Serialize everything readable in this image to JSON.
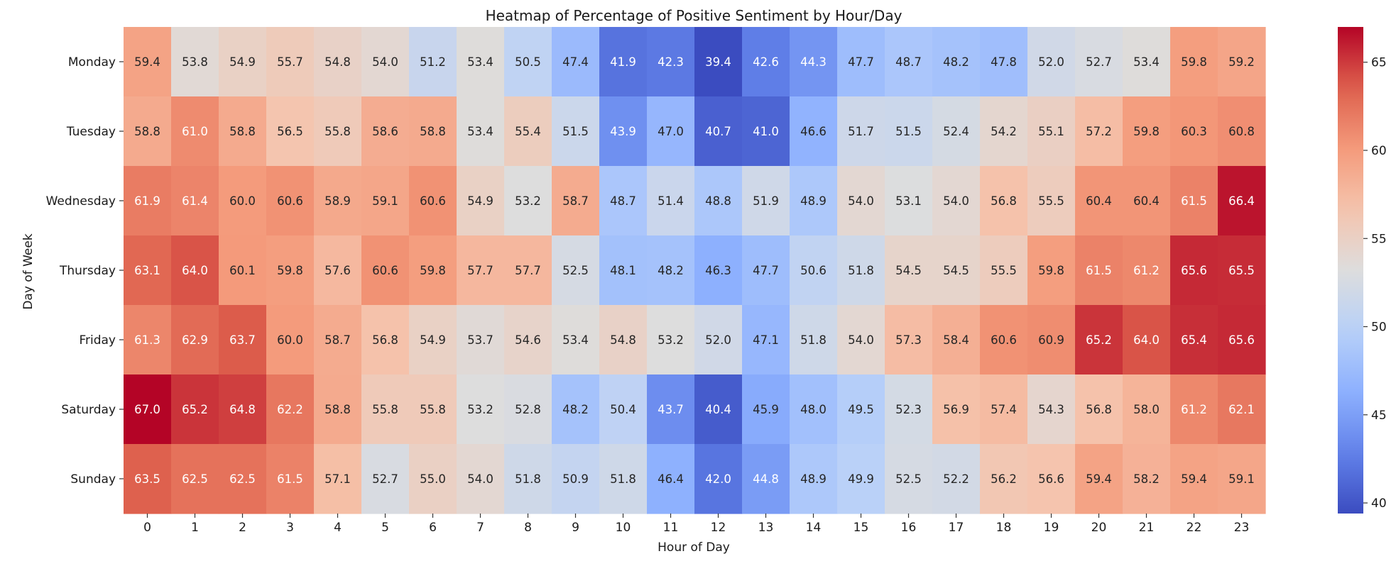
{
  "chart_data": {
    "type": "heatmap",
    "title": "Heatmap of Percentage of Positive Sentiment by Hour/Day",
    "xlabel": "Hour of Day",
    "ylabel": "Day of Week",
    "x_categories": [
      "0",
      "1",
      "2",
      "3",
      "4",
      "5",
      "6",
      "7",
      "8",
      "9",
      "10",
      "11",
      "12",
      "13",
      "14",
      "15",
      "16",
      "17",
      "18",
      "19",
      "20",
      "21",
      "22",
      "23"
    ],
    "y_categories": [
      "Monday",
      "Tuesday",
      "Wednesday",
      "Thursday",
      "Friday",
      "Saturday",
      "Sunday"
    ],
    "values": [
      [
        59.4,
        53.8,
        54.9,
        55.7,
        54.8,
        54.0,
        51.2,
        53.4,
        50.5,
        47.4,
        41.9,
        42.3,
        39.4,
        42.6,
        44.3,
        47.7,
        48.7,
        48.2,
        47.8,
        52.0,
        52.7,
        53.4,
        59.8,
        59.2
      ],
      [
        58.8,
        61.0,
        58.8,
        56.5,
        55.8,
        58.6,
        58.8,
        53.4,
        55.4,
        51.5,
        43.9,
        47.0,
        40.7,
        41.0,
        46.6,
        51.7,
        51.5,
        52.4,
        54.2,
        55.1,
        57.2,
        59.8,
        60.3,
        60.8
      ],
      [
        61.9,
        61.4,
        60.0,
        60.6,
        58.9,
        59.1,
        60.6,
        54.9,
        53.2,
        58.7,
        48.7,
        51.4,
        48.8,
        51.9,
        48.9,
        54.0,
        53.1,
        54.0,
        56.8,
        55.5,
        60.4,
        60.4,
        61.5,
        66.4
      ],
      [
        63.1,
        64.0,
        60.1,
        59.8,
        57.6,
        60.6,
        59.8,
        57.7,
        57.7,
        52.5,
        48.1,
        48.2,
        46.3,
        47.7,
        50.6,
        51.8,
        54.5,
        54.5,
        55.5,
        59.8,
        61.5,
        61.2,
        65.6,
        65.5
      ],
      [
        61.3,
        62.9,
        63.7,
        60.0,
        58.7,
        56.8,
        54.9,
        53.7,
        54.6,
        53.4,
        54.8,
        53.2,
        52.0,
        47.1,
        51.8,
        54.0,
        57.3,
        58.4,
        60.6,
        60.9,
        65.2,
        64.0,
        65.4,
        65.6
      ],
      [
        67.0,
        65.2,
        64.8,
        62.2,
        58.8,
        55.8,
        55.8,
        53.2,
        52.8,
        48.2,
        50.4,
        43.7,
        40.4,
        45.9,
        48.0,
        49.5,
        52.3,
        56.9,
        57.4,
        54.3,
        56.8,
        58.0,
        61.2,
        62.1
      ],
      [
        63.5,
        62.5,
        62.5,
        61.5,
        57.1,
        52.7,
        55.0,
        54.0,
        51.8,
        50.9,
        51.8,
        46.4,
        42.0,
        44.8,
        48.9,
        49.9,
        52.5,
        52.2,
        56.2,
        56.6,
        59.4,
        58.2,
        59.4,
        59.1
      ]
    ],
    "value_range": [
      39.4,
      67.0
    ],
    "colormap": "coolwarm",
    "colorbar": {
      "ticks": [
        40,
        45,
        50,
        55,
        60,
        65
      ],
      "tick_labels": [
        "40",
        "45",
        "50",
        "55",
        "60",
        "65"
      ],
      "placement": "right"
    },
    "grid": false,
    "annotations": "cell values shown with one decimal"
  }
}
